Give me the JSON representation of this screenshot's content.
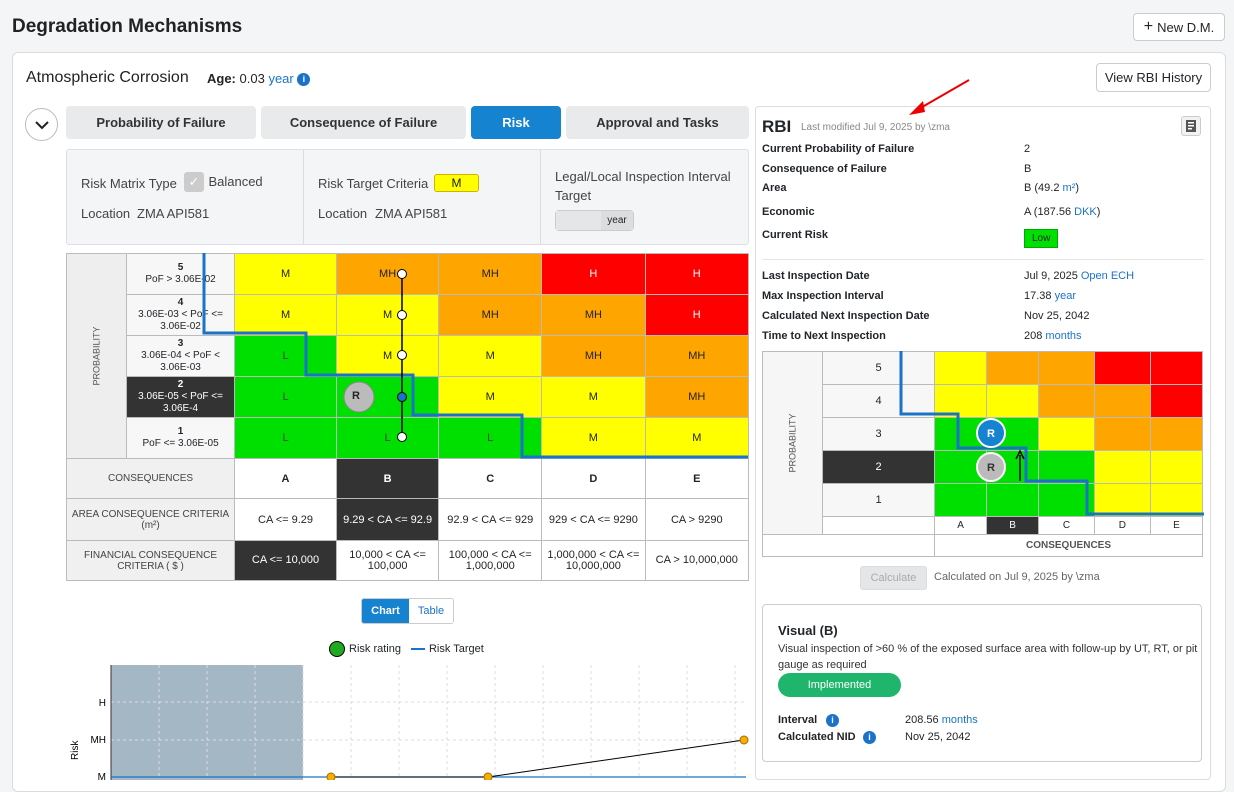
{
  "page": {
    "title": "Degradation Mechanisms",
    "new_button": "New D.M."
  },
  "mechanism": {
    "title": "Atmospheric Corrosion",
    "age_label": "Age:",
    "age_value": "0.03",
    "age_unit": "year",
    "history_button": "View RBI History"
  },
  "tabs": [
    "Probability of Failure",
    "Consequence of Failure",
    "Risk",
    "Approval and Tasks"
  ],
  "settings": {
    "matrix_type_label": "Risk Matrix Type",
    "matrix_type_value": "Balanced",
    "location_label": "Location",
    "location_value": "ZMA API581",
    "target_label": "Risk Target Criteria",
    "target_value": "M",
    "location2_label": "Location",
    "location2_value": "ZMA API581",
    "legal_label": "Legal/Local Inspection Interval Target",
    "legal_unit": "year"
  },
  "matrix": {
    "prob_axis": "PROBABILITY",
    "rows": [
      {
        "num": "5",
        "range": "PoF > 3.06E-02",
        "cells": [
          "M",
          "MH",
          "MH",
          "H",
          "H"
        ]
      },
      {
        "num": "4",
        "range": "3.06E-03 < PoF <= 3.06E-02",
        "cells": [
          "M",
          "M",
          "MH",
          "MH",
          "H"
        ]
      },
      {
        "num": "3",
        "range": "3.06E-04 < PoF < 3.06E-03",
        "cells": [
          "L",
          "M",
          "M",
          "MH",
          "MH"
        ]
      },
      {
        "num": "2",
        "range": "3.06E-05 < PoF <= 3.06E-4",
        "cells": [
          "L",
          "",
          "M",
          "M",
          "MH"
        ]
      },
      {
        "num": "1",
        "range": "PoF <= 3.06E-05",
        "cells": [
          "L",
          "L",
          "L",
          "M",
          "M"
        ]
      }
    ],
    "marker": "R",
    "consequences_label": "CONSEQUENCES",
    "columns": [
      "A",
      "B",
      "C",
      "D",
      "E"
    ],
    "area_label": "AREA CONSEQUENCE CRITERIA (m²)",
    "area": [
      "CA <= 9.29",
      "9.29 < CA <= 92.9",
      "92.9 < CA <= 929",
      "929 < CA <= 9290",
      "CA > 9290"
    ],
    "fin_label": "FINANCIAL CONSEQUENCE CRITERIA ( $ )",
    "financial": [
      "CA <= 10,000",
      "10,000 < CA <= 100,000",
      "100,000 < CA <= 1,000,000",
      "1,000,000 < CA <= 10,000,000",
      "CA > 10,000,000"
    ]
  },
  "toggle": {
    "chart": "Chart",
    "table": "Table"
  },
  "chart_data": {
    "type": "line",
    "legend": [
      "Risk rating",
      "Risk Target"
    ],
    "ylabel": "Risk",
    "y_ticks": [
      "H",
      "MH",
      "M"
    ],
    "series": [
      {
        "name": "Risk rating",
        "values": [
          "M",
          "M",
          "MH"
        ]
      }
    ]
  },
  "rbi": {
    "title": "RBI",
    "modified": "Last modified Jul 9, 2025 by \\zma",
    "fields": [
      {
        "k": "Current Probability of Failure",
        "v": "2"
      },
      {
        "k": "Consequence of Failure",
        "v": "B"
      },
      {
        "k": "Area",
        "v": "B (49.2 ",
        "link": "m²",
        "tail": ")"
      },
      {
        "k": "Economic",
        "v": "A (187.56 ",
        "link": "DKK",
        "tail": ")"
      },
      {
        "k": "Current Risk",
        "badge": "Low"
      }
    ],
    "fields2": [
      {
        "k": "Last Inspection Date",
        "v": "Jul 9, 2025 ",
        "link": "Open ECH"
      },
      {
        "k": "Max Inspection Interval",
        "v": "17.38 ",
        "link": "year"
      },
      {
        "k": "Calculated Next Inspection Date",
        "v": "Nov 25, 2042"
      },
      {
        "k": "Time to Next Inspection",
        "v": "208 ",
        "link": "months"
      }
    ],
    "mini_rows": [
      "5",
      "4",
      "3",
      "2",
      "1"
    ],
    "mini_cols": [
      "A",
      "B",
      "C",
      "D",
      "E"
    ],
    "mini_prob": "PROBABILITY",
    "mini_cons": "CONSEQUENCES",
    "calculate": "Calculate",
    "calculated_on": "Calculated on Jul 9, 2025 by \\zma",
    "visual_title": "Visual  (B)",
    "visual_desc": "Visual inspection of >60 % of the exposed surface area with follow-up by UT, RT, or pit gauge as required",
    "implemented": "Implemented",
    "interval_label": "Interval",
    "interval_value": "208.56 ",
    "interval_unit": "months",
    "nid_label": "Calculated NID",
    "nid_value": "Nov 25, 2042"
  }
}
